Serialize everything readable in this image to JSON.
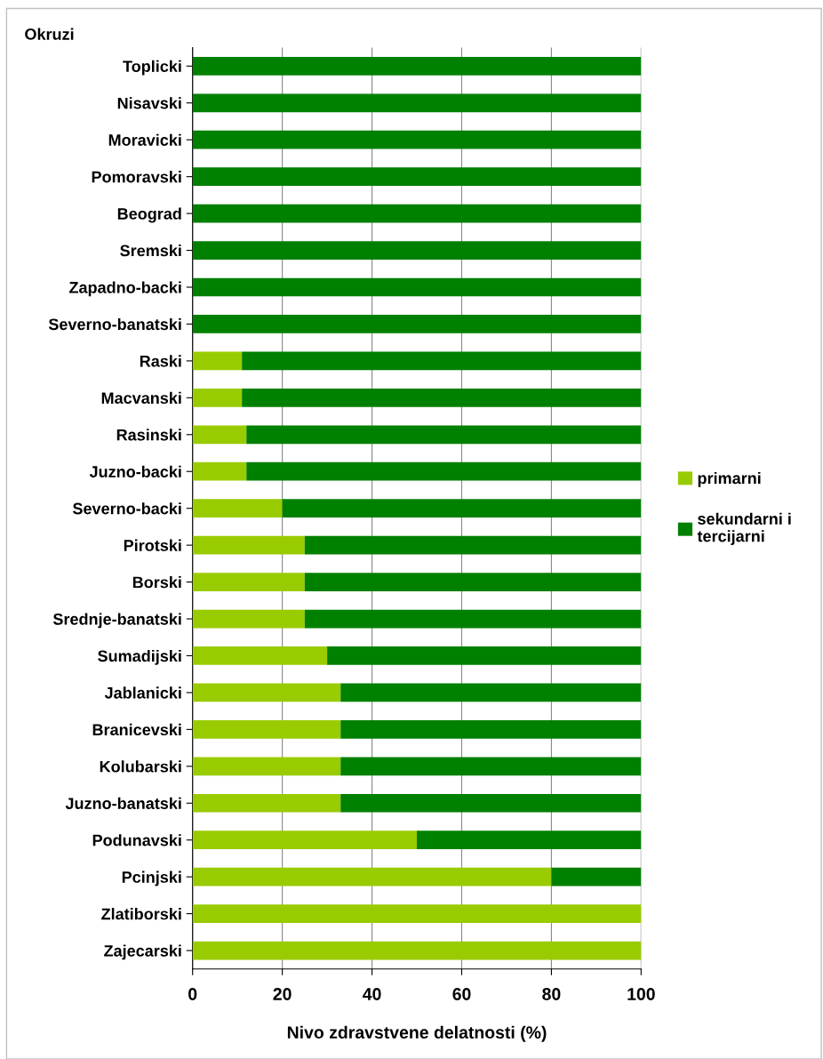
{
  "chart_data": {
    "type": "bar",
    "orientation": "horizontal",
    "stacked": true,
    "ylabel": "Okruzi",
    "xlabel": "Nivo zdravstvene delatnosti (%)",
    "categories": [
      "Toplicki",
      "Nisavski",
      "Moravicki",
      "Pomoravski",
      "Beograd",
      "Sremski",
      "Zapadno-backi",
      "Severno-banatski",
      "Raski",
      "Macvanski",
      "Rasinski",
      "Juzno-backi",
      "Severno-backi",
      "Pirotski",
      "Borski",
      "Srednje-banatski",
      "Sumadijski",
      "Jablanicki",
      "Branicevski",
      "Kolubarski",
      "Juzno-banatski",
      "Podunavski",
      "Pcinjski",
      "Zlatiborski",
      "Zajecarski"
    ],
    "series": [
      {
        "name": "primarni",
        "color": "#99cc00",
        "values": [
          0,
          0,
          0,
          0,
          0,
          0,
          0,
          0,
          11,
          11,
          12,
          12,
          20,
          25,
          25,
          25,
          30,
          33,
          33,
          33,
          33,
          50,
          80,
          100,
          100
        ]
      },
      {
        "name": "sekundarni i tercijarni",
        "color": "#008000",
        "values": [
          100,
          100,
          100,
          100,
          100,
          100,
          100,
          100,
          89,
          89,
          88,
          88,
          80,
          75,
          75,
          75,
          70,
          67,
          67,
          67,
          67,
          50,
          20,
          0,
          0
        ]
      }
    ],
    "xlim": [
      0,
      100
    ],
    "xticks": [
      0,
      20,
      40,
      60,
      80,
      100
    ],
    "grid": "x",
    "legend": "right"
  }
}
